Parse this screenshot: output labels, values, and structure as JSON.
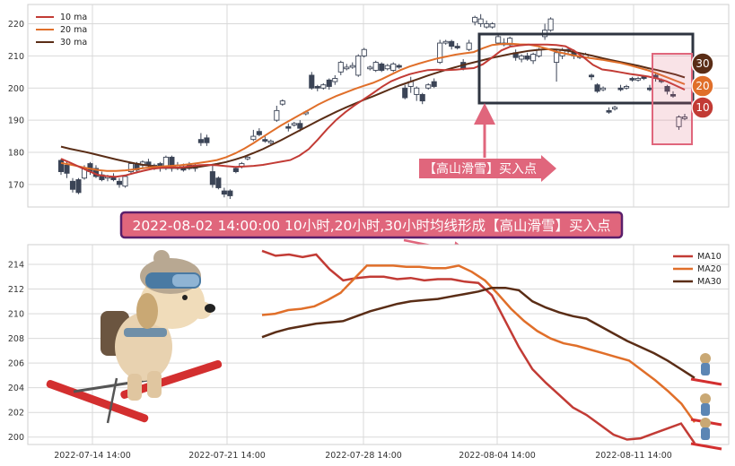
{
  "chart_data": [
    {
      "type": "candlestick",
      "ylim": [
        163,
        226
      ],
      "yticks": [
        170,
        180,
        190,
        200,
        210,
        220
      ],
      "grid": true,
      "legend_position": "top-left",
      "legend": [
        {
          "name": "10 ma",
          "color": "#c23b35"
        },
        {
          "name": "20 ma",
          "color": "#e06f2a"
        },
        {
          "name": "30 ma",
          "color": "#5a2d16"
        }
      ],
      "candles": [
        [
          177.5,
          174.0,
          178.0,
          173.0
        ],
        [
          176.0,
          173.5,
          177.0,
          172.0
        ],
        [
          171.0,
          168.5,
          172.0,
          167.5
        ],
        [
          171.5,
          167.5,
          172.0,
          167.0
        ],
        [
          172.0,
          175.0,
          176.0,
          171.5
        ],
        [
          176.5,
          174.0,
          177.0,
          173.0
        ],
        [
          175.0,
          172.5,
          176.0,
          172.0
        ],
        [
          173.0,
          171.5,
          174.0,
          171.0
        ],
        [
          172.0,
          172.5,
          173.0,
          171.0
        ],
        [
          172.5,
          171.5,
          173.5,
          171.0
        ],
        [
          171.0,
          170.0,
          172.0,
          169.0
        ],
        [
          169.5,
          172.5,
          173.0,
          169.0
        ],
        [
          174.0,
          176.5,
          177.0,
          173.5
        ],
        [
          176.5,
          174.5,
          177.0,
          173.5
        ],
        [
          176.0,
          177.0,
          177.5,
          175.0
        ],
        [
          177.0,
          176.0,
          178.0,
          175.5
        ],
        [
          175.0,
          176.0,
          176.5,
          174.5
        ],
        [
          176.5,
          175.0,
          177.0,
          174.0
        ],
        [
          175.0,
          178.5,
          179.0,
          174.5
        ],
        [
          178.5,
          175.0,
          179.0,
          174.0
        ],
        [
          175.0,
          176.0,
          177.0,
          174.5
        ],
        [
          175.5,
          174.5,
          176.5,
          174.0
        ],
        [
          176.0,
          175.0,
          177.0,
          174.5
        ],
        [
          175.0,
          176.0,
          176.5,
          174.0
        ],
        [
          184.0,
          183.0,
          186.0,
          182.0
        ],
        [
          184.5,
          183.0,
          185.5,
          182.0
        ],
        [
          174.0,
          170.0,
          176.0,
          169.0
        ],
        [
          172.0,
          169.0,
          172.5,
          168.5
        ],
        [
          168.0,
          167.0,
          169.0,
          166.0
        ],
        [
          168.0,
          166.5,
          168.5,
          165.5
        ],
        [
          175.0,
          174.0,
          175.5,
          173.5
        ],
        [
          175.5,
          176.5,
          177.0,
          175.0
        ],
        [
          178.0,
          178.5,
          179.0,
          177.5
        ],
        [
          184.0,
          185.0,
          187.0,
          183.5
        ],
        [
          186.5,
          185.5,
          187.5,
          185.0
        ],
        [
          184.0,
          183.5,
          185.0,
          183.0
        ],
        [
          183.0,
          183.5,
          184.0,
          182.5
        ],
        [
          190.0,
          193.0,
          194.5,
          189.5
        ],
        [
          195.0,
          196.0,
          196.5,
          194.5
        ],
        [
          188.0,
          187.5,
          189.0,
          186.5
        ],
        [
          188.5,
          189.0,
          189.5,
          188.0
        ],
        [
          189.0,
          187.5,
          190.0,
          186.5
        ],
        [
          192.0,
          192.5,
          193.0,
          191.5
        ],
        [
          204.0,
          200.0,
          205.0,
          199.5
        ],
        [
          200.5,
          200.0,
          201.0,
          199.0
        ],
        [
          200.0,
          201.0,
          201.5,
          199.5
        ],
        [
          202.5,
          200.5,
          203.0,
          199.5
        ],
        [
          202.0,
          203.0,
          204.0,
          201.0
        ],
        [
          205.0,
          208.0,
          208.5,
          204.0
        ],
        [
          206.0,
          206.5,
          207.5,
          205.5
        ],
        [
          206.5,
          207.0,
          208.0,
          206.0
        ],
        [
          204.0,
          210.0,
          210.5,
          203.5
        ],
        [
          210.0,
          212.0,
          212.5,
          209.5
        ],
        [
          206.0,
          206.5,
          207.0,
          205.5
        ],
        [
          205.5,
          208.0,
          208.5,
          205.0
        ],
        [
          207.5,
          205.5,
          208.0,
          205.0
        ],
        [
          206.0,
          207.0,
          207.5,
          205.5
        ],
        [
          205.5,
          207.5,
          208.0,
          205.0
        ],
        [
          207.0,
          206.5,
          207.5,
          206.0
        ],
        [
          200.0,
          197.0,
          201.0,
          196.5
        ],
        [
          200.5,
          202.0,
          203.5,
          198.5
        ],
        [
          198.0,
          200.0,
          200.5,
          196.0
        ],
        [
          198.0,
          196.0,
          198.5,
          195.0
        ],
        [
          200.0,
          201.0,
          201.5,
          199.5
        ],
        [
          202.0,
          200.5,
          203.0,
          200.0
        ],
        [
          208.0,
          214.0,
          215.0,
          207.5
        ],
        [
          214.0,
          214.5,
          215.0,
          213.5
        ],
        [
          214.5,
          213.0,
          215.0,
          212.0
        ],
        [
          213.0,
          212.5,
          214.0,
          212.0
        ],
        [
          208.0,
          206.0,
          209.0,
          205.5
        ],
        [
          212.0,
          214.0,
          215.0,
          211.5
        ],
        [
          220.5,
          222.0,
          222.5,
          219.5
        ],
        [
          220.0,
          221.5,
          223.0,
          219.0
        ],
        [
          219.0,
          220.0,
          221.0,
          218.5
        ],
        [
          219.0,
          220.0,
          220.5,
          218.5
        ],
        [
          214.0,
          216.0,
          217.0,
          213.5
        ],
        [
          214.0,
          213.5,
          215.5,
          213.0
        ],
        [
          213.5,
          215.5,
          216.0,
          213.0
        ],
        [
          211.0,
          209.5,
          212.0,
          208.5
        ],
        [
          209.0,
          210.0,
          210.5,
          208.0
        ],
        [
          210.0,
          209.0,
          211.0,
          208.5
        ],
        [
          208.5,
          210.5,
          211.0,
          207.5
        ],
        [
          210.0,
          212.0,
          212.5,
          209.5
        ],
        [
          216.0,
          218.0,
          220.0,
          215.0
        ],
        [
          218.0,
          221.5,
          222.0,
          217.5
        ],
        [
          208.0,
          211.0,
          212.0,
          202.0
        ],
        [
          210.0,
          212.0,
          212.5,
          209.0
        ],
        [
          212.0,
          211.5,
          212.5,
          210.5
        ],
        [
          211.0,
          210.0,
          212.0,
          209.0
        ],
        [
          210.0,
          209.5,
          210.5,
          209.0
        ],
        [
          209.5,
          210.5,
          211.0,
          209.0
        ],
        [
          204.0,
          203.5,
          204.5,
          202.5
        ],
        [
          201.0,
          199.0,
          201.5,
          198.5
        ],
        [
          199.5,
          200.0,
          200.5,
          199.0
        ],
        [
          193.0,
          192.5,
          194.0,
          192.0
        ],
        [
          193.5,
          194.0,
          194.5,
          193.0
        ],
        [
          200.0,
          199.5,
          201.0,
          199.0
        ],
        [
          200.0,
          200.5,
          201.0,
          199.5
        ],
        [
          203.0,
          202.5,
          203.5,
          202.0
        ],
        [
          202.5,
          203.0,
          203.5,
          202.0
        ],
        [
          203.5,
          203.0,
          204.0,
          202.5
        ],
        [
          200.0,
          199.5,
          201.0,
          199.0
        ],
        [
          204.0,
          203.0,
          205.0,
          202.0
        ],
        [
          202.5,
          202.0,
          203.0,
          201.5
        ],
        [
          200.5,
          199.0,
          201.0,
          198.0
        ],
        [
          198.0,
          197.5,
          199.0,
          197.0
        ],
        [
          188.0,
          191.0,
          191.5,
          187.0
        ],
        [
          190.5,
          191.0,
          192.0,
          190.0
        ]
      ],
      "ma10": [
        178.0,
        176.8,
        175.5,
        174.2,
        173.0,
        172.6,
        172.4,
        172.8,
        173.6,
        174.3,
        174.9,
        175.2,
        175.3,
        175.3,
        175.6,
        176.0,
        176.1,
        176.0,
        175.7,
        175.5,
        175.6,
        175.8,
        176.1,
        176.6,
        177.1,
        177.6,
        179.0,
        181.0,
        184.0,
        187.2,
        190.1,
        192.5,
        194.6,
        196.5,
        198.4,
        200.4,
        202.1,
        203.3,
        204.3,
        205.0,
        205.6,
        205.7,
        205.6,
        205.7,
        206.0,
        206.2,
        207.4,
        209.5,
        211.7,
        212.9,
        213.3,
        213.5,
        213.5,
        213.5,
        213.4,
        213.0,
        211.5,
        209.5,
        207.2,
        205.8,
        205.4,
        204.9,
        204.4,
        204.0,
        203.6,
        203.0,
        202.1,
        200.8,
        199.5
      ],
      "ma20": [
        176.7,
        176.2,
        175.6,
        175.0,
        174.5,
        174.2,
        174.2,
        174.4,
        174.7,
        175.1,
        175.4,
        175.6,
        175.8,
        176.0,
        176.3,
        176.7,
        177.1,
        177.6,
        178.5,
        179.7,
        181.2,
        182.9,
        184.8,
        186.6,
        188.4,
        190.0,
        191.6,
        193.2,
        194.8,
        196.2,
        197.5,
        198.6,
        199.7,
        200.7,
        201.6,
        202.8,
        204.2,
        205.6,
        206.7,
        207.6,
        208.4,
        209.2,
        209.8,
        210.4,
        210.8,
        211.2,
        212.4,
        213.4,
        213.7,
        213.8,
        213.6,
        213.5,
        213.0,
        212.2,
        211.3,
        210.7,
        210.1,
        209.6,
        209.2,
        208.8,
        208.3,
        207.8,
        207.1,
        206.3,
        205.5,
        204.5,
        203.4,
        202.3,
        201.2
      ],
      "ma30": [
        181.8,
        181.1,
        180.5,
        179.9,
        179.2,
        178.5,
        177.8,
        177.2,
        176.6,
        176.1,
        175.7,
        175.4,
        175.2,
        175.2,
        175.3,
        175.5,
        175.9,
        176.4,
        177.0,
        177.8,
        178.7,
        179.8,
        181.0,
        182.4,
        183.8,
        185.3,
        186.8,
        188.3,
        189.8,
        191.2,
        192.6,
        193.9,
        195.1,
        196.3,
        197.4,
        198.6,
        199.8,
        200.9,
        201.9,
        202.9,
        203.9,
        204.8,
        205.7,
        206.5,
        207.3,
        208.0,
        208.7,
        209.4,
        210.0,
        210.6,
        211.1,
        211.6,
        211.9,
        212.1,
        212.0,
        211.7,
        211.2,
        210.6,
        210.0,
        209.3,
        208.7,
        208.1,
        207.5,
        206.9,
        206.2,
        205.6,
        204.9,
        204.2,
        203.3
      ]
    },
    {
      "type": "line",
      "ylim": [
        199.4,
        215.6
      ],
      "yticks": [
        200,
        202,
        204,
        206,
        208,
        210,
        212,
        214
      ],
      "xticks": [
        "2022-07-14 14:00",
        "2022-07-21 14:00",
        "2022-07-28 14:00",
        "2022-08-04 14:00",
        "2022-08-11 14:00"
      ],
      "grid": true,
      "legend_position": "top-right",
      "series": [
        {
          "name": "MA10",
          "color": "#c23b35",
          "values": [
            215.1,
            214.7,
            214.8,
            214.6,
            214.8,
            213.6,
            212.7,
            212.9,
            213.0,
            213.0,
            212.8,
            212.9,
            212.7,
            212.8,
            212.8,
            212.6,
            212.5,
            211.5,
            209.4,
            207.3,
            205.5,
            204.4,
            203.4,
            202.4,
            201.8,
            201.0,
            200.2,
            199.8,
            199.9,
            200.3,
            200.7,
            201.1,
            199.5
          ]
        },
        {
          "name": "MA20",
          "color": "#e06f2a",
          "values": [
            209.9,
            210.0,
            210.3,
            210.4,
            210.6,
            211.1,
            211.7,
            212.8,
            213.9,
            213.9,
            213.9,
            213.8,
            213.8,
            213.7,
            213.7,
            213.9,
            213.4,
            212.7,
            211.6,
            210.4,
            209.4,
            208.6,
            208.0,
            207.6,
            207.4,
            207.1,
            206.8,
            206.5,
            206.2,
            205.4,
            204.6,
            203.7,
            202.7,
            201.2
          ]
        },
        {
          "name": "MA30",
          "color": "#5a2d16",
          "values": [
            208.1,
            208.5,
            208.8,
            209.0,
            209.2,
            209.3,
            209.4,
            209.8,
            210.2,
            210.5,
            210.8,
            211.0,
            211.1,
            211.2,
            211.4,
            211.6,
            211.8,
            212.1,
            212.1,
            211.9,
            211.0,
            210.5,
            210.1,
            209.8,
            209.6,
            209.0,
            208.4,
            207.8,
            207.3,
            206.8,
            206.2,
            205.5,
            204.8
          ]
        }
      ]
    }
  ],
  "annotation": {
    "banner": "2022-08-02 14:00:00 10小时,20小时,30小时均线形成【高山滑雪】买入点",
    "arrow_label": "【高山滑雪】买入点",
    "badges": [
      "30",
      "20",
      "10"
    ]
  },
  "colors": {
    "up_candle": "#ffffff",
    "down_candle": "#3b4456",
    "candle_edge": "#3b4456",
    "box_dark": "#2e3440",
    "box_pink": "#e0667c",
    "banner_fill": "#e0667c",
    "banner_border": "#5a1f6b",
    "badge_30": "#5a2d16",
    "badge_20": "#e06f2a",
    "badge_10": "#c23b35"
  },
  "icons": [
    "skiing-dog-mascot",
    "skier-figure"
  ]
}
